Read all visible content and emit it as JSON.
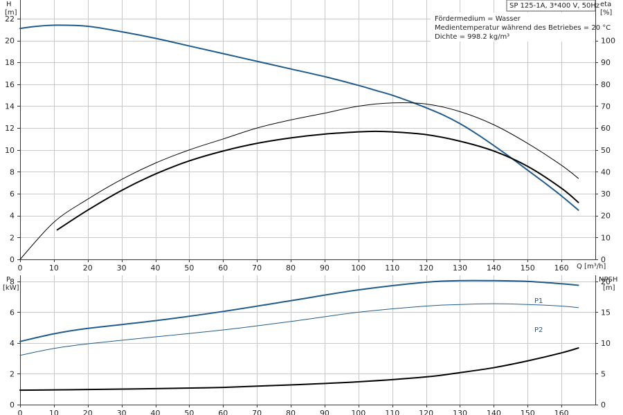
{
  "title": "SP 125-1A, 3*400 V, 50Hz",
  "medium": [
    "Fördermedium = Wasser",
    "Medientemperatur während des Betriebes = 20 °C",
    "Dichte = 998.2 kg/m³"
  ],
  "colors": {
    "blue": "#1f5a8c",
    "black": "#000000",
    "grid": "#c8c8c8"
  },
  "chart_data": [
    {
      "type": "line",
      "name": "head-efficiency",
      "x_label": "Q [m³/h]",
      "xlim": [
        0,
        170
      ],
      "x_ticks": [
        0,
        10,
        20,
        30,
        40,
        50,
        60,
        70,
        80,
        90,
        100,
        110,
        120,
        130,
        140,
        150,
        160
      ],
      "left_axis": {
        "label_top": "H",
        "label_unit": "[m]",
        "ylim": [
          0,
          23.7
        ],
        "ticks": [
          0,
          2,
          4,
          6,
          8,
          10,
          12,
          14,
          16,
          18,
          20,
          22
        ]
      },
      "right_axis": {
        "label_top": "eta",
        "label_unit": "[%]",
        "ylim": [
          0,
          118.5
        ],
        "ticks": [
          0,
          10,
          20,
          30,
          40,
          50,
          60,
          70,
          80,
          90,
          100
        ]
      },
      "series": [
        {
          "axis": "left",
          "color": "blue",
          "width": 2,
          "x": [
            0,
            5,
            11,
            20,
            30,
            40,
            50,
            60,
            70,
            80,
            90,
            100,
            105,
            110,
            115,
            120,
            125,
            130,
            135,
            140,
            145,
            150,
            155,
            160,
            165
          ],
          "y": [
            21.1,
            21.3,
            21.4,
            21.3,
            20.8,
            20.2,
            19.5,
            18.8,
            18.1,
            17.4,
            16.7,
            15.9,
            15.45,
            15.0,
            14.45,
            13.85,
            13.2,
            12.4,
            11.45,
            10.4,
            9.3,
            8.15,
            7.0,
            5.8,
            4.5
          ]
        },
        {
          "axis": "right",
          "color": "black",
          "width": 1,
          "x": [
            0,
            10,
            20,
            30,
            40,
            50,
            60,
            70,
            80,
            90,
            100,
            110,
            120,
            130,
            140,
            150,
            160,
            165
          ],
          "y": [
            0,
            17,
            27.5,
            36.5,
            44,
            50,
            55,
            60,
            63.7,
            66.8,
            70,
            71.5,
            71,
            67.5,
            61.5,
            53,
            43,
            37
          ]
        },
        {
          "axis": "left",
          "color": "black",
          "width": 2,
          "x": [
            11,
            20,
            30,
            40,
            50,
            60,
            70,
            80,
            90,
            100,
            105,
            110,
            120,
            130,
            140,
            150,
            160,
            165
          ],
          "y": [
            2.7,
            4.5,
            6.3,
            7.8,
            9.0,
            9.9,
            10.6,
            11.1,
            11.45,
            11.65,
            11.7,
            11.65,
            11.4,
            10.8,
            9.9,
            8.5,
            6.5,
            5.2
          ]
        }
      ]
    },
    {
      "type": "line",
      "name": "power-npsh",
      "xlim": [
        0,
        170
      ],
      "x_ticks": [
        0,
        10,
        20,
        30,
        40,
        50,
        60,
        70,
        80,
        90,
        100,
        110,
        120,
        130,
        140,
        150,
        160
      ],
      "left_axis": {
        "label_top": "P",
        "label_unit": "[kW]",
        "ylim": [
          0,
          8.4
        ],
        "ticks": [
          0,
          2,
          4,
          6,
          8
        ]
      },
      "right_axis": {
        "label_top": "NPSH",
        "label_unit": "[m]",
        "ylim": [
          0,
          21
        ],
        "ticks": [
          0,
          5,
          10,
          15,
          20
        ]
      },
      "series": [
        {
          "name": "P1",
          "axis": "left",
          "color": "blue",
          "width": 2,
          "x": [
            0,
            10,
            20,
            40,
            60,
            80,
            100,
            120,
            130,
            140,
            150,
            160,
            165
          ],
          "y": [
            4.1,
            4.6,
            4.95,
            5.45,
            6.05,
            6.75,
            7.45,
            7.95,
            8.05,
            8.05,
            8.0,
            7.85,
            7.75
          ]
        },
        {
          "name": "P2",
          "axis": "left",
          "color": "blue",
          "width": 1,
          "x": [
            0,
            10,
            20,
            40,
            60,
            80,
            100,
            120,
            130,
            140,
            150,
            160,
            165
          ],
          "y": [
            3.2,
            3.65,
            3.95,
            4.4,
            4.85,
            5.4,
            6.0,
            6.4,
            6.5,
            6.55,
            6.5,
            6.4,
            6.3
          ]
        },
        {
          "axis": "right",
          "color": "black",
          "width": 2,
          "x": [
            0,
            11,
            20,
            40,
            60,
            80,
            100,
            120,
            130,
            140,
            150,
            160,
            165
          ],
          "y": [
            2.35,
            2.4,
            2.45,
            2.6,
            2.8,
            3.2,
            3.7,
            4.5,
            5.2,
            6.0,
            7.1,
            8.4,
            9.2
          ]
        }
      ]
    }
  ]
}
